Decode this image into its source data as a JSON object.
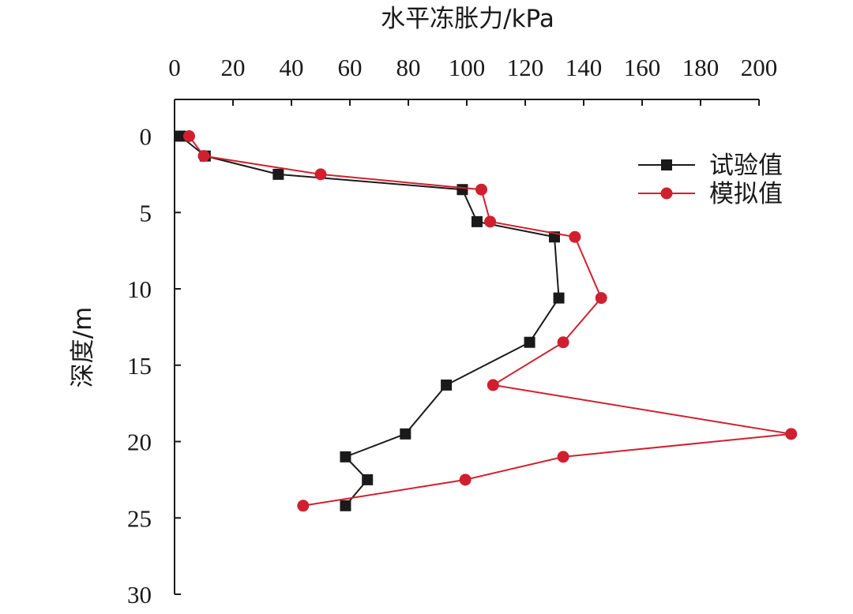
{
  "chart_data": {
    "type": "line",
    "xlabel": "水平冻胀力/kPa",
    "ylabel": "深度/m",
    "x_axis_position": "top",
    "y_axis_inverted": true,
    "xlim": [
      0,
      200
    ],
    "ylim": [
      0,
      30
    ],
    "x_ticks": [
      0,
      20,
      40,
      60,
      80,
      100,
      120,
      140,
      160,
      180,
      200
    ],
    "y_ticks": [
      0,
      5,
      10,
      15,
      20,
      25,
      30
    ],
    "legend_position": "top-right",
    "series": [
      {
        "name": "试验值",
        "color": "#1a1a1a",
        "marker": "square",
        "points": [
          {
            "x": 2,
            "y": 0
          },
          {
            "x": 10.5,
            "y": 1.3
          },
          {
            "x": 35.5,
            "y": 2.5
          },
          {
            "x": 98.5,
            "y": 3.5
          },
          {
            "x": 103.5,
            "y": 5.6
          },
          {
            "x": 130,
            "y": 6.6
          },
          {
            "x": 131.5,
            "y": 10.6
          },
          {
            "x": 121.5,
            "y": 13.5
          },
          {
            "x": 93,
            "y": 16.3
          },
          {
            "x": 79,
            "y": 19.5
          },
          {
            "x": 58.5,
            "y": 21
          },
          {
            "x": 66,
            "y": 22.5
          },
          {
            "x": 58.5,
            "y": 24.2
          }
        ]
      },
      {
        "name": "模拟值",
        "color": "#d0202f",
        "marker": "circle",
        "points": [
          {
            "x": 5,
            "y": 0
          },
          {
            "x": 10,
            "y": 1.3
          },
          {
            "x": 50,
            "y": 2.5
          },
          {
            "x": 105,
            "y": 3.5
          },
          {
            "x": 108,
            "y": 5.6
          },
          {
            "x": 137,
            "y": 6.6
          },
          {
            "x": 146,
            "y": 10.6
          },
          {
            "x": 133,
            "y": 13.5
          },
          {
            "x": 109,
            "y": 16.3
          },
          {
            "x": 211,
            "y": 19.5
          },
          {
            "x": 133,
            "y": 21
          },
          {
            "x": 99.5,
            "y": 22.5
          },
          {
            "x": 44,
            "y": 24.2
          }
        ]
      }
    ]
  }
}
